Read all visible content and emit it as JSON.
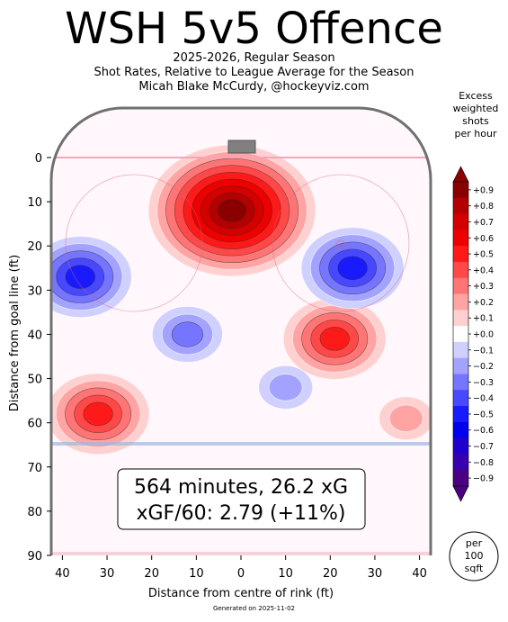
{
  "header": {
    "title": "WSH 5v5 Offence",
    "subtitle1": "2025-2026, Regular Season",
    "subtitle2": "Shot Rates, Relative to League Average for the Season",
    "subtitle3": "Micah Blake McCurdy, @hockeyviz.com"
  },
  "colorbar": {
    "title": [
      "Excess",
      "weighted",
      "shots",
      "per hour"
    ],
    "ticks": [
      "+0.9",
      "+0.8",
      "+0.7",
      "+0.6",
      "+0.5",
      "+0.4",
      "+0.3",
      "+0.2",
      "+0.1",
      "+0.0",
      "−0.1",
      "−0.2",
      "−0.3",
      "−0.4",
      "−0.5",
      "−0.6",
      "−0.7",
      "−0.8",
      "−0.9"
    ],
    "colors": {
      "pos": [
        "#ffd0d0",
        "#ffa3a3",
        "#ff7575",
        "#ff4848",
        "#ff1a1a",
        "#ed0000",
        "#d40000",
        "#b30000",
        "#8a0000"
      ],
      "neg": [
        "#d0d0ff",
        "#a3a3ff",
        "#7575ff",
        "#4848ff",
        "#1a1aff",
        "#0000ed",
        "#1f00cc",
        "#3a00b0",
        "#4b0082"
      ]
    }
  },
  "stats": {
    "line1": "564 minutes, 26.2 xG",
    "line2": "xGF/60: 2.79 (+11%)"
  },
  "scale_badge": [
    "per",
    "100",
    "sqft"
  ],
  "footer": {
    "generated": "Generated on 2025-11-02"
  },
  "chart_data": {
    "type": "heatmap",
    "xlabel": "Distance from centre of rink (ft)",
    "ylabel": "Distance from goal line (ft)",
    "xlim": [
      -42.5,
      42.5
    ],
    "ylim": [
      -11,
      90
    ],
    "xticks": [
      -40,
      -30,
      -20,
      -10,
      0,
      10,
      20,
      30,
      40
    ],
    "xtick_labels": [
      "40",
      "30",
      "20",
      "10",
      "0",
      "10",
      "20",
      "30",
      "40"
    ],
    "yticks": [
      0,
      10,
      20,
      30,
      40,
      50,
      60,
      70,
      80,
      90
    ],
    "value_range": [
      -0.9,
      0.9
    ],
    "hotspots": [
      {
        "x": -2,
        "y": 12,
        "value": 0.9
      },
      {
        "x": 21,
        "y": 41,
        "value": 0.5
      },
      {
        "x": -32,
        "y": 58,
        "value": 0.5
      },
      {
        "x": 37,
        "y": 59,
        "value": 0.2
      },
      {
        "x": 25,
        "y": 25,
        "value": -0.45
      },
      {
        "x": -36,
        "y": 27,
        "value": -0.45
      },
      {
        "x": -12,
        "y": 40,
        "value": -0.25
      },
      {
        "x": 10,
        "y": 52,
        "value": -0.2
      }
    ]
  }
}
